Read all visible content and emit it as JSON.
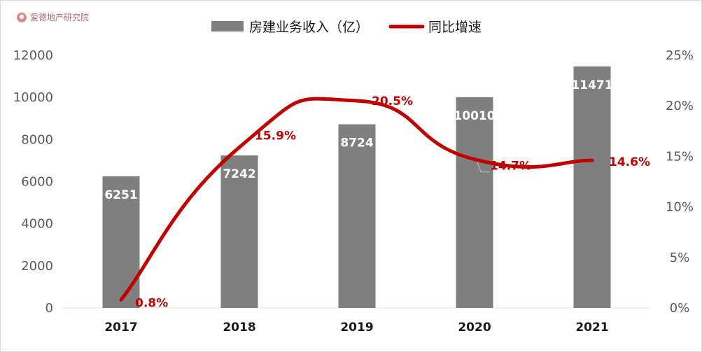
{
  "watermark": {
    "text": "爱德地产研究院"
  },
  "legend": {
    "bar_label": "房建业务收入（亿）",
    "line_label": "同比增速"
  },
  "colors": {
    "bar": "#7f7f7f",
    "line": "#c00000",
    "axis": "#d9d9d9"
  },
  "chart_data": {
    "type": "bar",
    "categories": [
      "2017",
      "2018",
      "2019",
      "2020",
      "2021"
    ],
    "series": [
      {
        "name": "房建业务收入（亿）",
        "type": "bar",
        "axis": "left",
        "values": [
          6251,
          7242,
          8724,
          10010,
          11471
        ]
      },
      {
        "name": "同比增速",
        "type": "line",
        "axis": "right",
        "values": [
          0.8,
          15.9,
          20.5,
          14.7,
          14.6
        ],
        "labels": [
          "0.8%",
          "15.9%",
          "20.5%",
          "14.7%",
          "14.6%"
        ]
      }
    ],
    "y_left": {
      "range": [
        0,
        12000
      ],
      "ticks": [
        "0",
        "2000",
        "4000",
        "6000",
        "8000",
        "10000",
        "12000"
      ]
    },
    "y_right": {
      "range": [
        0,
        25
      ],
      "ticks": [
        "0%",
        "5%",
        "10%",
        "15%",
        "20%",
        "25%"
      ]
    },
    "legend_position": "top",
    "grid": false
  }
}
